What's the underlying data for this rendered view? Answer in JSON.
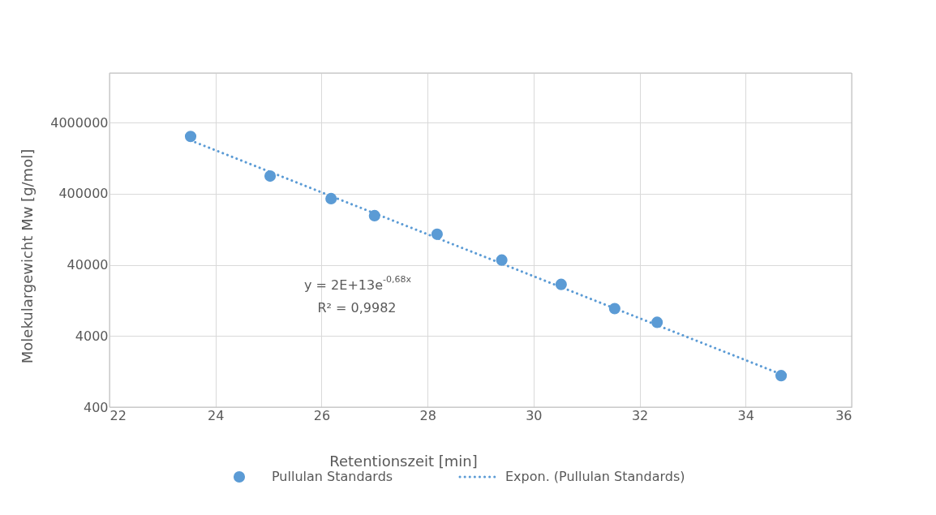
{
  "chart_data": {
    "type": "scatter",
    "xlabel": "Retentionszeit [min]",
    "ylabel": "Molekulargewicht Mw [g/mol]",
    "log": "y",
    "xlim": [
      22,
      36
    ],
    "xticks": [
      22,
      24,
      26,
      28,
      30,
      32,
      34,
      36
    ],
    "ylim": [
      400,
      20000000
    ],
    "yticks": [
      400,
      4000,
      40000,
      400000,
      4000000
    ],
    "grid": true,
    "legend": "bottom",
    "marker": "circle",
    "annotations": [
      "y = 2E+13e$^{-0,68x}$",
      "R² = 0,9982"
    ],
    "series": [
      {
        "name": "Pullulan Standards",
        "color": "#5b9bd5",
        "x": [
          23.53,
          25.03,
          26.18,
          27.0,
          28.18,
          29.4,
          30.52,
          31.53,
          32.33,
          34.67
        ],
        "values": [
          2560000,
          711000,
          342000,
          197000,
          108000,
          46800,
          21300,
          9730,
          6240,
          1110
        ]
      },
      {
        "name": "Expon. (Pullulan Standards)",
        "color": "#5b9bd5",
        "type": "line",
        "line_style": "dotted",
        "marker": "none",
        "x": [
          23.53,
          34.67
        ],
        "values": [
          2250000,
          1160
        ]
      }
    ]
  }
}
